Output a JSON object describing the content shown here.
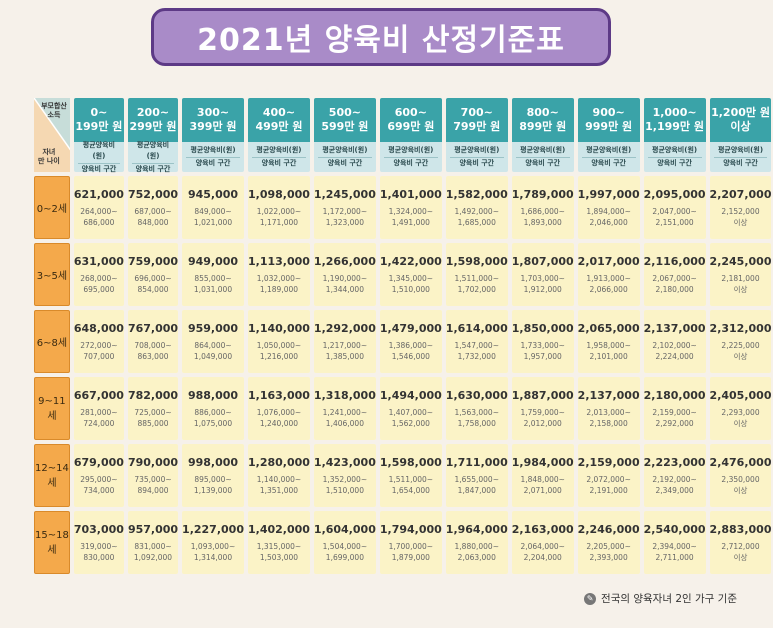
{
  "title": "2021년 양육비 산정기준표",
  "corner": {
    "top": "부모합산\n소득",
    "bottom": "자녀\n만 나이"
  },
  "columns": [
    {
      "line1": "0~",
      "line2": "199만 원"
    },
    {
      "line1": "200~",
      "line2": "299만 원"
    },
    {
      "line1": "300~",
      "line2": "399만 원"
    },
    {
      "line1": "400~",
      "line2": "499만 원"
    },
    {
      "line1": "500~",
      "line2": "599만 원"
    },
    {
      "line1": "600~",
      "line2": "699만 원"
    },
    {
      "line1": "700~",
      "line2": "799만 원"
    },
    {
      "line1": "800~",
      "line2": "899만 원"
    },
    {
      "line1": "900~",
      "line2": "999만 원"
    },
    {
      "line1": "1,000~",
      "line2": "1,199만 원"
    },
    {
      "line1": "1,200만 원",
      "line2": "이상"
    }
  ],
  "subheader": {
    "avg": "평균양육비(원)",
    "range": "양육비 구간"
  },
  "rows": [
    {
      "age": "0~2세",
      "cells": [
        {
          "avg": "621,000",
          "r1": "264,000~",
          "r2": "686,000"
        },
        {
          "avg": "752,000",
          "r1": "687,000~",
          "r2": "848,000"
        },
        {
          "avg": "945,000",
          "r1": "849,000~",
          "r2": "1,021,000"
        },
        {
          "avg": "1,098,000",
          "r1": "1,022,000~",
          "r2": "1,171,000"
        },
        {
          "avg": "1,245,000",
          "r1": "1,172,000~",
          "r2": "1,323,000"
        },
        {
          "avg": "1,401,000",
          "r1": "1,324,000~",
          "r2": "1,491,000"
        },
        {
          "avg": "1,582,000",
          "r1": "1,492,000~",
          "r2": "1,685,000"
        },
        {
          "avg": "1,789,000",
          "r1": "1,686,000~",
          "r2": "1,893,000"
        },
        {
          "avg": "1,997,000",
          "r1": "1,894,000~",
          "r2": "2,046,000"
        },
        {
          "avg": "2,095,000",
          "r1": "2,047,000~",
          "r2": "2,151,000"
        },
        {
          "avg": "2,207,000",
          "r1": "2,152,000",
          "r2": "이상"
        }
      ]
    },
    {
      "age": "3~5세",
      "cells": [
        {
          "avg": "631,000",
          "r1": "268,000~",
          "r2": "695,000"
        },
        {
          "avg": "759,000",
          "r1": "696,000~",
          "r2": "854,000"
        },
        {
          "avg": "949,000",
          "r1": "855,000~",
          "r2": "1,031,000"
        },
        {
          "avg": "1,113,000",
          "r1": "1,032,000~",
          "r2": "1,189,000"
        },
        {
          "avg": "1,266,000",
          "r1": "1,190,000~",
          "r2": "1,344,000"
        },
        {
          "avg": "1,422,000",
          "r1": "1,345,000~",
          "r2": "1,510,000"
        },
        {
          "avg": "1,598,000",
          "r1": "1,511,000~",
          "r2": "1,702,000"
        },
        {
          "avg": "1,807,000",
          "r1": "1,703,000~",
          "r2": "1,912,000"
        },
        {
          "avg": "2,017,000",
          "r1": "1,913,000~",
          "r2": "2,066,000"
        },
        {
          "avg": "2,116,000",
          "r1": "2,067,000~",
          "r2": "2,180,000"
        },
        {
          "avg": "2,245,000",
          "r1": "2,181,000",
          "r2": "이상"
        }
      ]
    },
    {
      "age": "6~8세",
      "cells": [
        {
          "avg": "648,000",
          "r1": "272,000~",
          "r2": "707,000"
        },
        {
          "avg": "767,000",
          "r1": "708,000~",
          "r2": "863,000"
        },
        {
          "avg": "959,000",
          "r1": "864,000~",
          "r2": "1,049,000"
        },
        {
          "avg": "1,140,000",
          "r1": "1,050,000~",
          "r2": "1,216,000"
        },
        {
          "avg": "1,292,000",
          "r1": "1,217,000~",
          "r2": "1,385,000"
        },
        {
          "avg": "1,479,000",
          "r1": "1,386,000~",
          "r2": "1,546,000"
        },
        {
          "avg": "1,614,000",
          "r1": "1,547,000~",
          "r2": "1,732,000"
        },
        {
          "avg": "1,850,000",
          "r1": "1,733,000~",
          "r2": "1,957,000"
        },
        {
          "avg": "2,065,000",
          "r1": "1,958,000~",
          "r2": "2,101,000"
        },
        {
          "avg": "2,137,000",
          "r1": "2,102,000~",
          "r2": "2,224,000"
        },
        {
          "avg": "2,312,000",
          "r1": "2,225,000",
          "r2": "이상"
        }
      ]
    },
    {
      "age": "9~11세",
      "cells": [
        {
          "avg": "667,000",
          "r1": "281,000~",
          "r2": "724,000"
        },
        {
          "avg": "782,000",
          "r1": "725,000~",
          "r2": "885,000"
        },
        {
          "avg": "988,000",
          "r1": "886,000~",
          "r2": "1,075,000"
        },
        {
          "avg": "1,163,000",
          "r1": "1,076,000~",
          "r2": "1,240,000"
        },
        {
          "avg": "1,318,000",
          "r1": "1,241,000~",
          "r2": "1,406,000"
        },
        {
          "avg": "1,494,000",
          "r1": "1,407,000~",
          "r2": "1,562,000"
        },
        {
          "avg": "1,630,000",
          "r1": "1,563,000~",
          "r2": "1,758,000"
        },
        {
          "avg": "1,887,000",
          "r1": "1,759,000~",
          "r2": "2,012,000"
        },
        {
          "avg": "2,137,000",
          "r1": "2,013,000~",
          "r2": "2,158,000"
        },
        {
          "avg": "2,180,000",
          "r1": "2,159,000~",
          "r2": "2,292,000"
        },
        {
          "avg": "2,405,000",
          "r1": "2,293,000",
          "r2": "이상"
        }
      ]
    },
    {
      "age": "12~14세",
      "cells": [
        {
          "avg": "679,000",
          "r1": "295,000~",
          "r2": "734,000"
        },
        {
          "avg": "790,000",
          "r1": "735,000~",
          "r2": "894,000"
        },
        {
          "avg": "998,000",
          "r1": "895,000~",
          "r2": "1,139,000"
        },
        {
          "avg": "1,280,000",
          "r1": "1,140,000~",
          "r2": "1,351,000"
        },
        {
          "avg": "1,423,000",
          "r1": "1,352,000~",
          "r2": "1,510,000"
        },
        {
          "avg": "1,598,000",
          "r1": "1,511,000~",
          "r2": "1,654,000"
        },
        {
          "avg": "1,711,000",
          "r1": "1,655,000~",
          "r2": "1,847,000"
        },
        {
          "avg": "1,984,000",
          "r1": "1,848,000~",
          "r2": "2,071,000"
        },
        {
          "avg": "2,159,000",
          "r1": "2,072,000~",
          "r2": "2,191,000"
        },
        {
          "avg": "2,223,000",
          "r1": "2,192,000~",
          "r2": "2,349,000"
        },
        {
          "avg": "2,476,000",
          "r1": "2,350,000",
          "r2": "이상"
        }
      ]
    },
    {
      "age": "15~18세",
      "cells": [
        {
          "avg": "703,000",
          "r1": "319,000~",
          "r2": "830,000"
        },
        {
          "avg": "957,000",
          "r1": "831,000~",
          "r2": "1,092,000"
        },
        {
          "avg": "1,227,000",
          "r1": "1,093,000~",
          "r2": "1,314,000"
        },
        {
          "avg": "1,402,000",
          "r1": "1,315,000~",
          "r2": "1,503,000"
        },
        {
          "avg": "1,604,000",
          "r1": "1,504,000~",
          "r2": "1,699,000"
        },
        {
          "avg": "1,794,000",
          "r1": "1,700,000~",
          "r2": "1,879,000"
        },
        {
          "avg": "1,964,000",
          "r1": "1,880,000~",
          "r2": "2,063,000"
        },
        {
          "avg": "2,163,000",
          "r1": "2,064,000~",
          "r2": "2,204,000"
        },
        {
          "avg": "2,246,000",
          "r1": "2,205,000~",
          "r2": "2,393,000"
        },
        {
          "avg": "2,540,000",
          "r1": "2,394,000~",
          "r2": "2,711,000"
        },
        {
          "avg": "2,883,000",
          "r1": "2,712,000",
          "r2": "이상"
        }
      ]
    }
  ],
  "footnote": {
    "icon": "pen-icon",
    "text": "전국의 양육자녀 2인 가구 기준"
  },
  "colors": {
    "title_bg": "#a98bc8",
    "title_border": "#5d3a86",
    "header_bg": "#3aa3a8",
    "subheader_bg": "#cfe6e9",
    "age_bg": "#f4a94b",
    "cell_bg": "#fbf3c7"
  }
}
